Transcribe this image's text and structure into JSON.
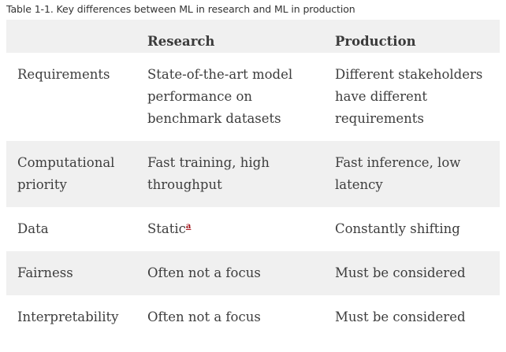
{
  "caption": "Table 1-1. Key differences between ML in research and ML in production",
  "table": {
    "headers": [
      "",
      "Research",
      "Production"
    ],
    "rows": [
      {
        "label": "Requirements",
        "research": "State-of-the-art model performance on benchmark datasets",
        "production": "Different stakeholders have different requirements"
      },
      {
        "label": "Computational priority",
        "research": "Fast training, high throughput",
        "production": "Fast inference, low latency"
      },
      {
        "label": "Data",
        "research": "Static",
        "research_footnote": "a",
        "production": "Constantly shifting"
      },
      {
        "label": "Fairness",
        "research": "Often not a focus",
        "production": "Must be considered"
      },
      {
        "label": "Interpretability",
        "research": "Often not a focus",
        "production": "Must be considered"
      }
    ]
  },
  "colors": {
    "header_bg": "#f0f0f0",
    "text": "#3d3d3d",
    "footnote_link": "#a3161d"
  }
}
